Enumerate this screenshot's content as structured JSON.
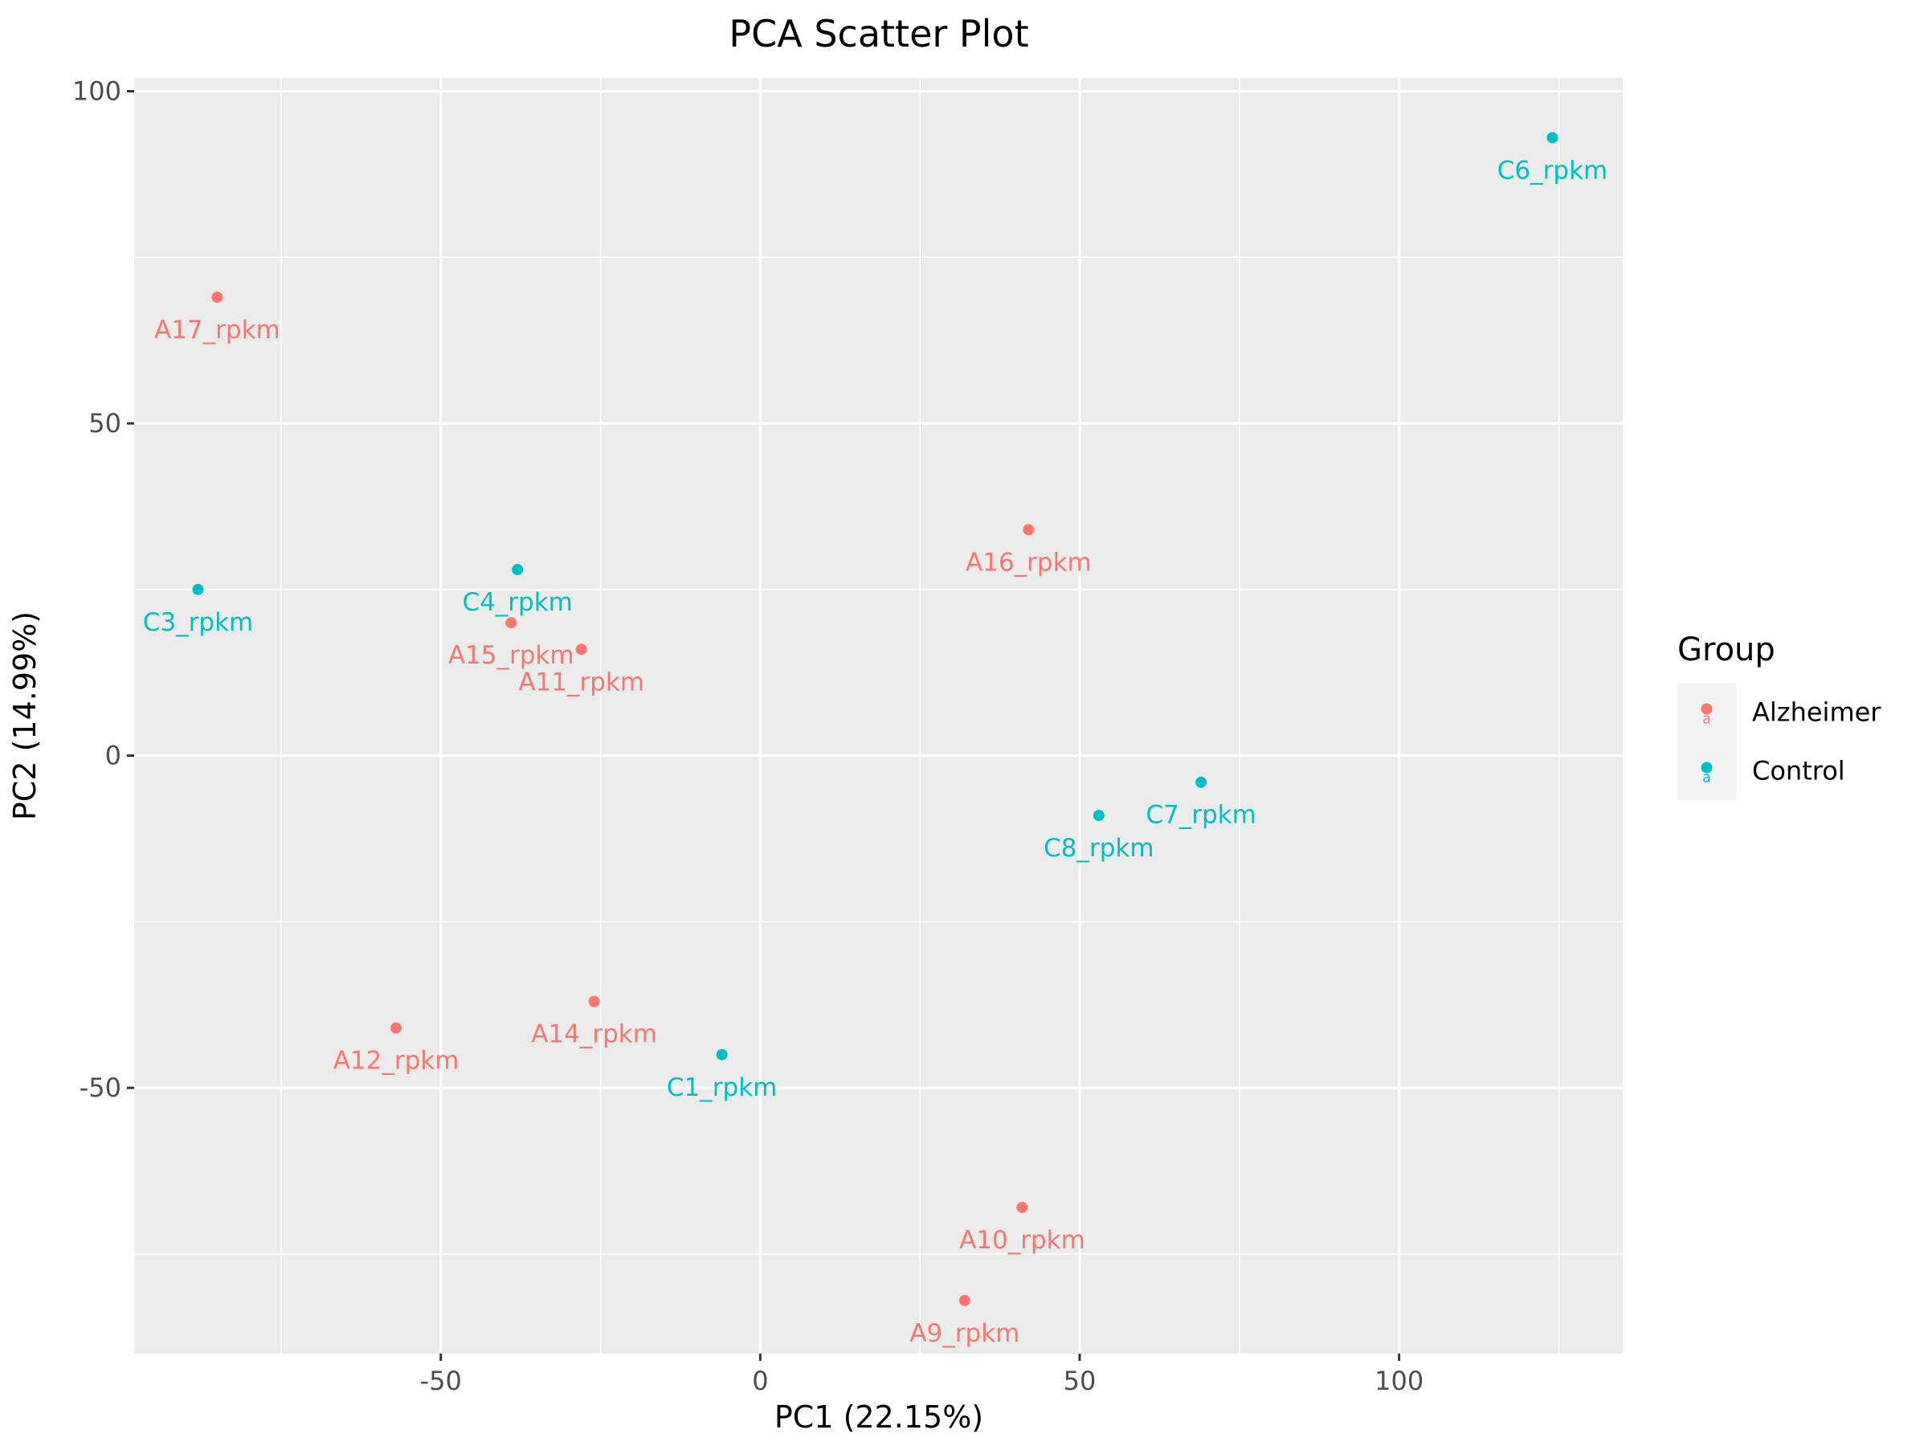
{
  "chart_data": {
    "type": "scatter",
    "title": "PCA Scatter Plot",
    "xlabel": "PC1 (22.15%)",
    "ylabel": "PC2 (14.99%)",
    "xlim": [
      -98,
      135
    ],
    "ylim": [
      -90,
      102
    ],
    "x_ticks": [
      -50,
      0,
      50,
      100
    ],
    "x_tick_labels": [
      "-50",
      "0",
      "50",
      "100"
    ],
    "y_ticks": [
      -50,
      0,
      50,
      100
    ],
    "y_tick_labels": [
      "-50",
      "0",
      "50",
      "100"
    ],
    "grid": true,
    "legend": {
      "title": "Group",
      "position": "right"
    },
    "series": [
      {
        "name": "Alzheimer",
        "color": "#F8766D",
        "points": [
          {
            "label": "A17_rpkm",
            "x": -85,
            "y": 69
          },
          {
            "label": "A15_rpkm",
            "x": -39,
            "y": 20
          },
          {
            "label": "A11_rpkm",
            "x": -28,
            "y": 16
          },
          {
            "label": "A16_rpkm",
            "x": 42,
            "y": 34
          },
          {
            "label": "A14_rpkm",
            "x": -26,
            "y": -37
          },
          {
            "label": "A12_rpkm",
            "x": -57,
            "y": -41
          },
          {
            "label": "A10_rpkm",
            "x": 41,
            "y": -68
          },
          {
            "label": "A9_rpkm",
            "x": 32,
            "y": -82
          }
        ]
      },
      {
        "name": "Control",
        "color": "#00BFC4",
        "points": [
          {
            "label": "C6_rpkm",
            "x": 124,
            "y": 93
          },
          {
            "label": "C3_rpkm",
            "x": -88,
            "y": 25
          },
          {
            "label": "C4_rpkm",
            "x": -38,
            "y": 28
          },
          {
            "label": "C7_rpkm",
            "x": 69,
            "y": -4
          },
          {
            "label": "C8_rpkm",
            "x": 53,
            "y": -9
          },
          {
            "label": "C1_rpkm",
            "x": -6,
            "y": -45
          }
        ]
      }
    ]
  }
}
